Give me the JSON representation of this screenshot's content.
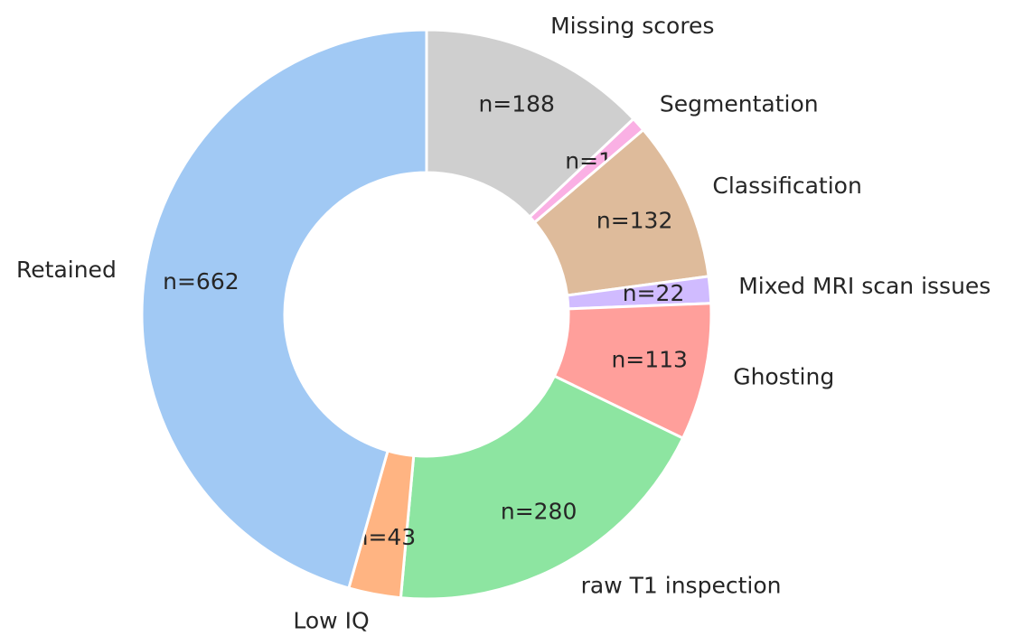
{
  "chart_data": {
    "type": "donut",
    "categories": [
      "Missing scores",
      "Segmentation",
      "Classification",
      "Mixed MRI scan issues",
      "Ghosting",
      "raw T1 inspection",
      "Low IQ",
      "Retained"
    ],
    "values": [
      188,
      12,
      132,
      22,
      113,
      280,
      43,
      662
    ],
    "value_labels": [
      "n=188",
      "n=12",
      "n=132",
      "n=22",
      "n=113",
      "n=280",
      "n=43",
      "n=662"
    ],
    "colors": [
      "#cfcfcf",
      "#fab0e4",
      "#debb9b",
      "#d0bbff",
      "#ff9f9b",
      "#8de5a1",
      "#ffb482",
      "#a1c9f4"
    ]
  }
}
